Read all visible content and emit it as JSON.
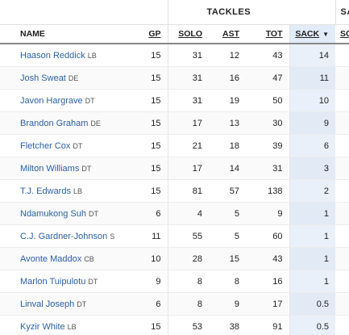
{
  "group_headers": {
    "tackles": "TACKLES",
    "sacks_partial": "SA"
  },
  "columns": {
    "name": "NAME",
    "gp": "GP",
    "solo": "SOLO",
    "ast": "AST",
    "tot": "TOT",
    "sack": "SACK",
    "sc_partial": "SC"
  },
  "rows": [
    {
      "name": "Haason Reddick",
      "pos": "LB",
      "gp": "15",
      "solo": "31",
      "ast": "12",
      "tot": "43",
      "sack": "14"
    },
    {
      "name": "Josh Sweat",
      "pos": "DE",
      "gp": "15",
      "solo": "31",
      "ast": "16",
      "tot": "47",
      "sack": "11"
    },
    {
      "name": "Javon Hargrave",
      "pos": "DT",
      "gp": "15",
      "solo": "31",
      "ast": "19",
      "tot": "50",
      "sack": "10"
    },
    {
      "name": "Brandon Graham",
      "pos": "DE",
      "gp": "15",
      "solo": "17",
      "ast": "13",
      "tot": "30",
      "sack": "9"
    },
    {
      "name": "Fletcher Cox",
      "pos": "DT",
      "gp": "15",
      "solo": "21",
      "ast": "18",
      "tot": "39",
      "sack": "6"
    },
    {
      "name": "Milton Williams",
      "pos": "DT",
      "gp": "15",
      "solo": "17",
      "ast": "14",
      "tot": "31",
      "sack": "3"
    },
    {
      "name": "T.J. Edwards",
      "pos": "LB",
      "gp": "15",
      "solo": "81",
      "ast": "57",
      "tot": "138",
      "sack": "2"
    },
    {
      "name": "Ndamukong Suh",
      "pos": "DT",
      "gp": "6",
      "solo": "4",
      "ast": "5",
      "tot": "9",
      "sack": "1"
    },
    {
      "name": "C.J. Gardner-Johnson",
      "pos": "S",
      "gp": "11",
      "solo": "55",
      "ast": "5",
      "tot": "60",
      "sack": "1"
    },
    {
      "name": "Avonte Maddox",
      "pos": "CB",
      "gp": "10",
      "solo": "28",
      "ast": "15",
      "tot": "43",
      "sack": "1"
    },
    {
      "name": "Marlon Tuipulotu",
      "pos": "DT",
      "gp": "9",
      "solo": "8",
      "ast": "8",
      "tot": "16",
      "sack": "1"
    },
    {
      "name": "Linval Joseph",
      "pos": "DT",
      "gp": "6",
      "solo": "8",
      "ast": "9",
      "tot": "17",
      "sack": "0.5"
    },
    {
      "name": "Kyzir White",
      "pos": "LB",
      "gp": "15",
      "solo": "53",
      "ast": "38",
      "tot": "91",
      "sack": "0.5"
    }
  ],
  "sort": {
    "column": "sack",
    "direction": "descending",
    "icon": "chevron-down-icon"
  },
  "colors": {
    "link": "#2c5fa8",
    "sorted_column_bg": "#e2ebf8",
    "row_alt_bg": "#fafafa",
    "border": "#e1e1e1"
  }
}
